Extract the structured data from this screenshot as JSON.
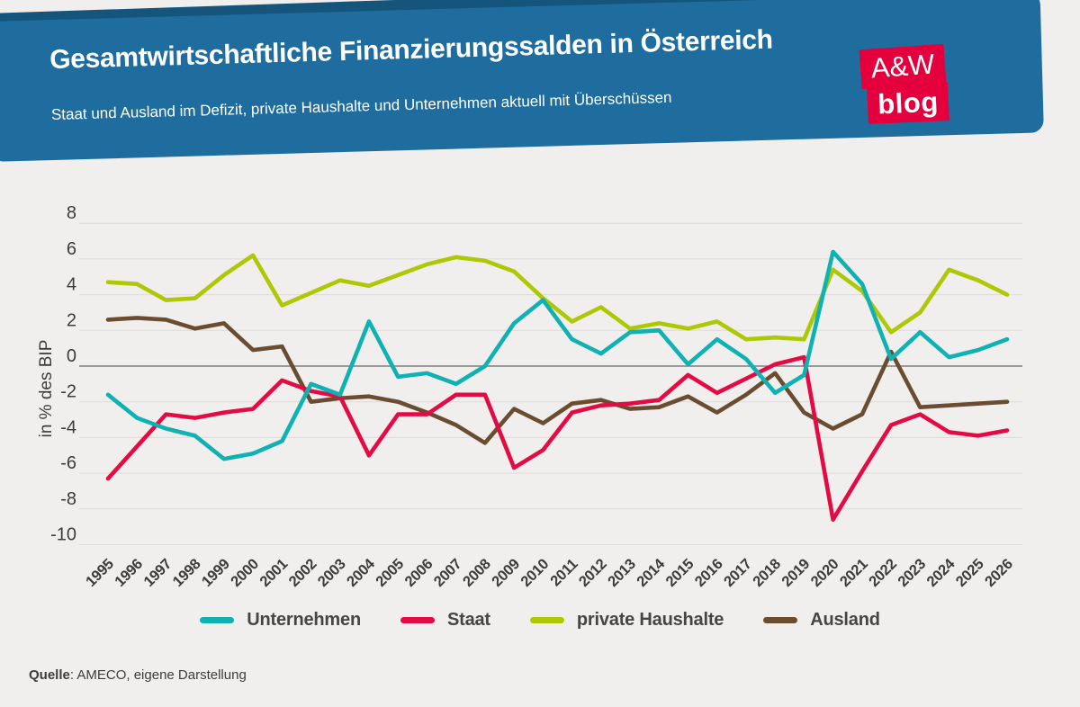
{
  "header": {
    "title": "Gesamtwirtschaftliche Finanzierungssalden in Österreich",
    "subtitle": "Staat und Ausland im Defizit, private Haushalte und Unternehmen aktuell mit Überschüssen",
    "logo": {
      "line1": "A&W",
      "line2": "blog"
    }
  },
  "source": {
    "label": "Quelle",
    "text": ": AMECO, eigene Darstellung"
  },
  "colors": {
    "banner_blue": "#1e6d9e",
    "banner_dark_blue": "#15547b",
    "logo_red": "#e4003c",
    "background": "#f0efed",
    "grid": "#dddcd9",
    "zero_line": "#7e7e7e",
    "axis_text": "#3c3c3c"
  },
  "chart_data": {
    "type": "line",
    "title": "Gesamtwirtschaftliche Finanzierungssalden in Österreich",
    "xlabel": "",
    "ylabel": "in % des BIP",
    "ylim": [
      -10,
      8
    ],
    "yticks": [
      8,
      6,
      4,
      2,
      0,
      -2,
      -4,
      -6,
      -8,
      -10
    ],
    "grid": true,
    "legend_position": "bottom",
    "years": [
      1995,
      1996,
      1997,
      1998,
      1999,
      2000,
      2001,
      2002,
      2003,
      2004,
      2005,
      2006,
      2007,
      2008,
      2009,
      2010,
      2011,
      2012,
      2013,
      2014,
      2015,
      2016,
      2017,
      2018,
      2019,
      2020,
      2021,
      2022,
      2023,
      2024,
      2025,
      2026
    ],
    "series": [
      {
        "name": "Unternehmen",
        "color": "#10b1b2",
        "values": [
          -1.6,
          -2.9,
          -3.5,
          -3.9,
          -5.2,
          -4.9,
          -4.2,
          -1.0,
          -1.6,
          2.5,
          -0.6,
          -0.4,
          -1.0,
          0.0,
          2.4,
          3.7,
          1.5,
          0.7,
          1.9,
          2.0,
          0.1,
          1.5,
          0.4,
          -1.5,
          -0.5,
          6.4,
          4.6,
          0.4,
          1.9,
          0.5,
          0.9,
          1.5
        ]
      },
      {
        "name": "Staat",
        "color": "#e40a43",
        "values": [
          -6.3,
          -4.5,
          -2.7,
          -2.9,
          -2.6,
          -2.4,
          -0.8,
          -1.4,
          -1.7,
          -5.0,
          -2.7,
          -2.7,
          -1.6,
          -1.6,
          -5.7,
          -4.7,
          -2.6,
          -2.2,
          -2.1,
          -1.9,
          -0.5,
          -1.5,
          -0.7,
          0.1,
          0.5,
          -8.6,
          -5.9,
          -3.3,
          -2.7,
          -3.7,
          -3.9,
          -3.6
        ]
      },
      {
        "name": "private Haushalte",
        "color": "#aec805",
        "values": [
          4.7,
          4.6,
          3.7,
          3.8,
          5.1,
          6.2,
          3.4,
          4.1,
          4.8,
          4.5,
          5.1,
          5.7,
          6.1,
          5.9,
          5.3,
          3.8,
          2.5,
          3.3,
          2.1,
          2.4,
          2.1,
          2.5,
          1.5,
          1.6,
          1.5,
          5.4,
          4.2,
          1.9,
          3.0,
          5.4,
          4.8,
          4.0
        ]
      },
      {
        "name": "Ausland",
        "color": "#6a4d31",
        "values": [
          2.6,
          2.7,
          2.6,
          2.1,
          2.4,
          0.9,
          1.1,
          -2.0,
          -1.8,
          -1.7,
          -2.0,
          -2.6,
          -3.3,
          -4.3,
          -2.4,
          -3.2,
          -2.1,
          -1.9,
          -2.4,
          -2.3,
          -1.7,
          -2.6,
          -1.6,
          -0.4,
          -2.6,
          -3.5,
          -2.7,
          0.8,
          -2.3,
          -2.2,
          -2.1,
          -2.0
        ]
      }
    ]
  }
}
